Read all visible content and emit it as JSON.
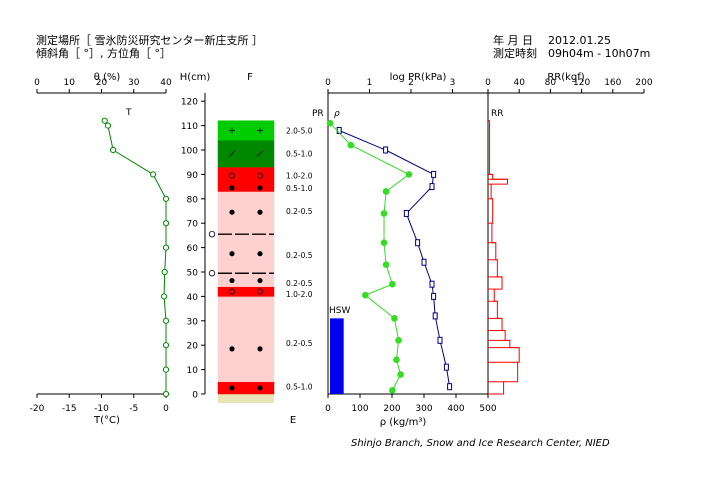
{
  "header": {
    "site_line": "測定場所［ 雪氷防災研究センター新庄支所 ］",
    "angle_line": "傾斜角［ °］, 方位角［ °］",
    "date_label": "年 月 日",
    "date_value": "2012.01.25",
    "time_label": "測定時刻",
    "time_value": "09h04m - 10h07m"
  },
  "footer": {
    "credit": "Shinjo Branch, Snow and Ice Research Center, NIED"
  },
  "chart_data": [
    {
      "type": "line",
      "title": "theta-temperature",
      "top_axis_label": "θ (%)",
      "top_ticks": [
        "0",
        "10",
        "20",
        "30",
        "40"
      ],
      "bottom_axis_label": "T(°C)",
      "bottom_ticks": [
        "-20",
        "-15",
        "-10",
        "-5",
        "0"
      ],
      "theta_marker_label": "T",
      "series": [
        {
          "name": "T",
          "color": "#008800",
          "points": [
            {
              "h": 0,
              "t": 0
            },
            {
              "h": 10,
              "t": 0
            },
            {
              "h": 20,
              "t": 0
            },
            {
              "h": 30,
              "t": 0
            },
            {
              "h": 40,
              "t": -0.3
            },
            {
              "h": 50,
              "t": -0.2
            },
            {
              "h": 60,
              "t": 0
            },
            {
              "h": 70,
              "t": 0
            },
            {
              "h": 80,
              "t": 0
            },
            {
              "h": 90,
              "t": -2
            },
            {
              "h": 100,
              "t": -8.2
            },
            {
              "h": 110,
              "t": -9.0
            },
            {
              "h": 112,
              "t": -9.5
            }
          ]
        }
      ]
    },
    {
      "type": "table",
      "title": "snow-layers",
      "column_h_label": "H(cm)",
      "column_f_label": "F",
      "height_ticks": [
        "0",
        "10",
        "20",
        "30",
        "40",
        "50",
        "60",
        "70",
        "80",
        "90",
        "100",
        "110",
        "120"
      ],
      "ground_label": "E",
      "layers": [
        {
          "bottom": 0,
          "top": 5,
          "color": "#ff0000",
          "grain": "solid-dot",
          "hardness": "0.5-1.0"
        },
        {
          "bottom": 5,
          "top": 32,
          "color": "#ffd0d0",
          "grain": "solid-dot",
          "hardness": "0.2-0.5"
        },
        {
          "bottom": 32,
          "top": 40,
          "color": "#ffd0d0",
          "grain": "",
          "hardness": ""
        },
        {
          "bottom": 40,
          "top": 44,
          "color": "#ff0000",
          "grain": "ring",
          "hardness": "1.0-2.0"
        },
        {
          "bottom": 44,
          "top": 49,
          "color": "#ffd0d0",
          "grain": "solid-dot",
          "hardness": "0.2-0.5"
        },
        {
          "bottom": 49,
          "top": 50,
          "color": "#ffd0d0",
          "grain": "ice-crust",
          "hardness": ""
        },
        {
          "bottom": 50,
          "top": 65,
          "color": "#ffd0d0",
          "grain": "solid-dot",
          "hardness": "0.2-0.5"
        },
        {
          "bottom": 65,
          "top": 66,
          "color": "#ffd0d0",
          "grain": "ice-crust",
          "hardness": ""
        },
        {
          "bottom": 66,
          "top": 83,
          "color": "#ffd0d0",
          "grain": "solid-dot",
          "hardness": "0.2-0.5"
        },
        {
          "bottom": 83,
          "top": 86,
          "color": "#ff0000",
          "grain": "solid-dot",
          "hardness": "0.5-1.0"
        },
        {
          "bottom": 86,
          "top": 93,
          "color": "#ff0000",
          "grain": "ring",
          "hardness": "1.0-2.0"
        },
        {
          "bottom": 93,
          "top": 104,
          "color": "#008800",
          "grain": "slash",
          "hardness": "0.5-1.0"
        },
        {
          "bottom": 104,
          "top": 112,
          "color": "#00cc00",
          "grain": "plus",
          "hardness": "2.0-5.0"
        }
      ],
      "hardness_labels": [
        {
          "h": 3,
          "text": "0.5-1.0"
        },
        {
          "h": 21,
          "text": "0.2-0.5"
        },
        {
          "h": 41,
          "text": "1.0-2.0"
        },
        {
          "h": 45.5,
          "text": "0.2-0.5"
        },
        {
          "h": 57,
          "text": "0.2-0.5"
        },
        {
          "h": 75,
          "text": "0.2-0.5"
        },
        {
          "h": 84.5,
          "text": "0.5-1.0"
        },
        {
          "h": 89.5,
          "text": "1.0-2.0"
        },
        {
          "h": 98.5,
          "text": "0.5-1.0"
        },
        {
          "h": 108,
          "text": "2.0-5.0"
        }
      ],
      "ice_crust_markers": [
        49.5,
        65.5
      ]
    },
    {
      "type": "line",
      "title": "density-and-penetration-resistance",
      "top_axis_label": "log PR(kPa)",
      "top_ticks": [
        "0",
        "1",
        "2",
        "3"
      ],
      "bottom_axis_label": "ρ (kg/m³)",
      "bottom_ticks": [
        "0",
        "100",
        "200",
        "300",
        "400",
        "500"
      ],
      "series_labels": {
        "pr": "PR",
        "rho": "ρ"
      },
      "hsw_label": "HSW",
      "hsw_value": 49,
      "hsw_height": 31,
      "series": [
        {
          "name": "PR",
          "color": "#33dd22",
          "points": [
            {
              "h": 1.5,
              "v": 1.55
            },
            {
              "h": 8,
              "v": 1.75
            },
            {
              "h": 14,
              "v": 1.65
            },
            {
              "h": 22,
              "v": 1.7
            },
            {
              "h": 31,
              "v": 1.6
            },
            {
              "h": 40.5,
              "v": 0.9
            },
            {
              "h": 45,
              "v": 1.55
            },
            {
              "h": 53,
              "v": 1.4
            },
            {
              "h": 62,
              "v": 1.35
            },
            {
              "h": 74,
              "v": 1.35
            },
            {
              "h": 83,
              "v": 1.4
            },
            {
              "h": 90,
              "v": 1.95
            },
            {
              "h": 102,
              "v": 0.55
            },
            {
              "h": 111,
              "v": 0.05
            }
          ]
        },
        {
          "name": "ρ",
          "color": "#000080",
          "points": [
            {
              "h": 3,
              "v": 380
            },
            {
              "h": 11,
              "v": 370
            },
            {
              "h": 22,
              "v": 350
            },
            {
              "h": 32,
              "v": 335
            },
            {
              "h": 40,
              "v": 330
            },
            {
              "h": 45,
              "v": 325
            },
            {
              "h": 54,
              "v": 300
            },
            {
              "h": 62,
              "v": 280
            },
            {
              "h": 74,
              "v": 245
            },
            {
              "h": 85,
              "v": 325
            },
            {
              "h": 90,
              "v": 330
            },
            {
              "h": 100,
              "v": 180
            },
            {
              "h": 108,
              "v": 35
            }
          ]
        }
      ]
    },
    {
      "type": "bar",
      "title": "ram-resistance",
      "top_axis_label": "RR(kgf)",
      "top_ticks": [
        "0",
        "40",
        "80",
        "120",
        "160",
        "200"
      ],
      "series_label": "RR",
      "color": "#ff0000",
      "segments": [
        {
          "bottom": 0,
          "top": 5,
          "value": 20
        },
        {
          "bottom": 5,
          "top": 13,
          "value": 38
        },
        {
          "bottom": 13,
          "top": 19,
          "value": 40
        },
        {
          "bottom": 19,
          "top": 22,
          "value": 28
        },
        {
          "bottom": 22,
          "top": 26,
          "value": 22
        },
        {
          "bottom": 26,
          "top": 31,
          "value": 18
        },
        {
          "bottom": 31,
          "top": 38,
          "value": 12
        },
        {
          "bottom": 38,
          "top": 43,
          "value": 8
        },
        {
          "bottom": 43,
          "top": 48,
          "value": 18
        },
        {
          "bottom": 48,
          "top": 55,
          "value": 12
        },
        {
          "bottom": 55,
          "top": 62,
          "value": 10
        },
        {
          "bottom": 62,
          "top": 70,
          "value": 5
        },
        {
          "bottom": 70,
          "top": 80,
          "value": 6
        },
        {
          "bottom": 80,
          "top": 86,
          "value": 4
        },
        {
          "bottom": 86,
          "top": 88,
          "value": 25
        },
        {
          "bottom": 88,
          "top": 90,
          "value": 6
        },
        {
          "bottom": 90,
          "top": 112,
          "value": 2
        }
      ]
    }
  ]
}
